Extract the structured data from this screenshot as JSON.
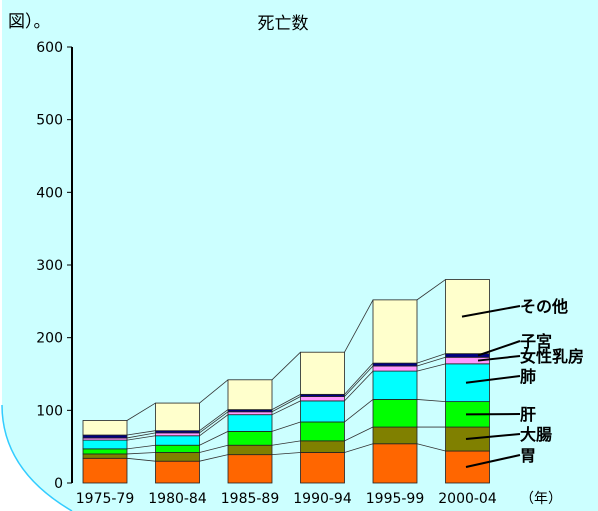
{
  "header": {
    "fragment_text": "図）。"
  },
  "chart_data": {
    "type": "bar",
    "stacked": true,
    "title": "死亡数",
    "xlabel": "（年）",
    "ylabel": "",
    "ylim": [
      0,
      600
    ],
    "yticks": [
      0,
      100,
      200,
      300,
      400,
      500,
      600
    ],
    "grid": false,
    "legend": "labels at right of last bar",
    "categories": [
      "1975-79",
      "1980-84",
      "1985-89",
      "1990-94",
      "1995-99",
      "2000-04"
    ],
    "series": [
      {
        "name": "胃",
        "color": "#ff6600",
        "values": [
          34,
          30,
          39,
          42,
          54,
          44
        ]
      },
      {
        "name": "大腸",
        "color": "#808000",
        "values": [
          6,
          12,
          13,
          16,
          23,
          33
        ]
      },
      {
        "name": "肝",
        "color": "#00ff00",
        "values": [
          7,
          10,
          19,
          26,
          38,
          35
        ]
      },
      {
        "name": "肺",
        "color": "#00ffff",
        "values": [
          12,
          13,
          23,
          29,
          39,
          52
        ]
      },
      {
        "name": "女性乳房",
        "color": "#ff99ff",
        "values": [
          3,
          4,
          4,
          6,
          7,
          9
        ]
      },
      {
        "name": "子宮",
        "color": "#000080",
        "values": [
          4,
          3,
          3,
          3,
          4,
          5
        ]
      },
      {
        "name": "その他",
        "color": "#ffffcc",
        "values": [
          20,
          38,
          41,
          58,
          87,
          102
        ]
      }
    ]
  },
  "colors": {
    "background_arc": "#ccffff",
    "arc_border": "#33ccff"
  }
}
